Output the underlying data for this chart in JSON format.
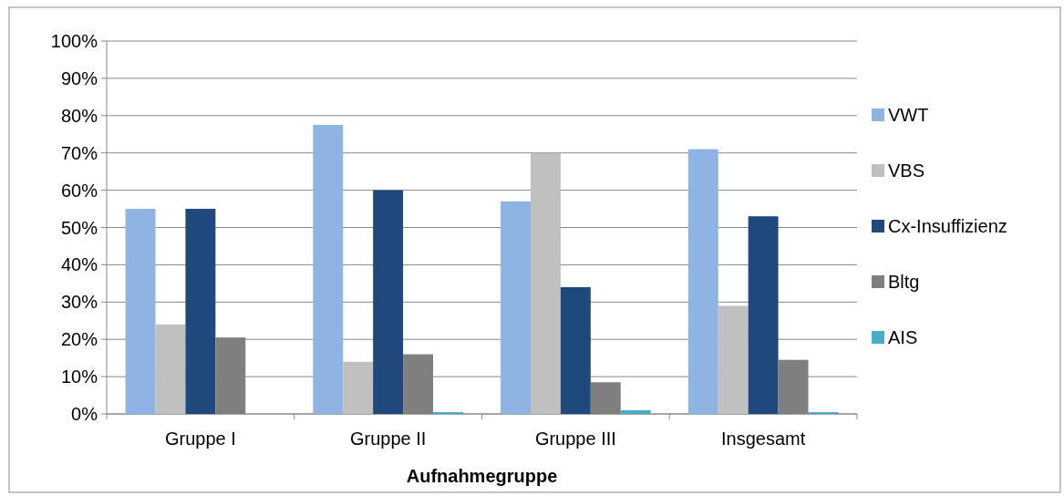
{
  "chart_data": {
    "type": "bar",
    "xlabel": "Aufnahmegruppe",
    "categories": [
      "Gruppe I",
      "Gruppe II",
      "Gruppe III",
      "Insgesamt"
    ],
    "series": [
      {
        "name": "VWT",
        "color": "#8eb4e3",
        "values": [
          55,
          77.5,
          57,
          71
        ]
      },
      {
        "name": "VBS",
        "color": "#c0c0c0",
        "values": [
          24,
          14,
          70,
          29
        ]
      },
      {
        "name": "Cx-Insuffizienz",
        "color": "#1f497d",
        "values": [
          55,
          60,
          34,
          53
        ]
      },
      {
        "name": "Bltg",
        "color": "#7f7f7f",
        "values": [
          20.5,
          16,
          8.5,
          14.5
        ]
      },
      {
        "name": "AIS",
        "color": "#4bacc6",
        "values": [
          0,
          0.5,
          1,
          0.5
        ]
      }
    ],
    "ylim": [
      0,
      100
    ],
    "yticks": [
      {
        "value": 0,
        "label": "0%"
      },
      {
        "value": 10,
        "label": "10%"
      },
      {
        "value": 20,
        "label": "20%"
      },
      {
        "value": 30,
        "label": "30%"
      },
      {
        "value": 40,
        "label": "40%"
      },
      {
        "value": 50,
        "label": "50%"
      },
      {
        "value": 60,
        "label": "60%"
      },
      {
        "value": 70,
        "label": "70%"
      },
      {
        "value": 80,
        "label": "80%"
      },
      {
        "value": 90,
        "label": "90%"
      },
      {
        "value": 100,
        "label": "100%"
      }
    ],
    "grid": "y",
    "legend": "right"
  }
}
